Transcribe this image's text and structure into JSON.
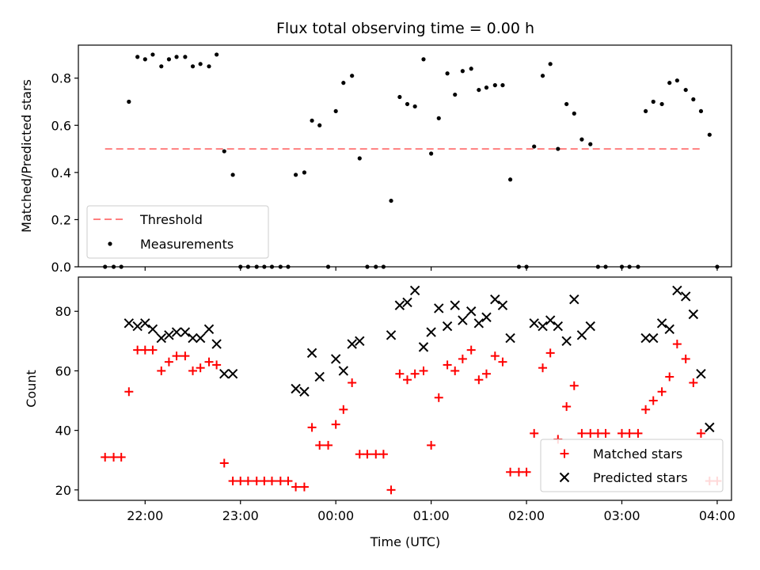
{
  "chart_data": [
    {
      "type": "scatter",
      "title": "Flux total observing time = 0.00 h",
      "xlabel": "",
      "ylabel": "Matched/Predicted stars",
      "ylim": [
        0,
        0.94
      ],
      "yticks": [
        0.0,
        0.2,
        0.4,
        0.6,
        0.8
      ],
      "ytick_labels": [
        "0.0",
        "0.2",
        "0.4",
        "0.6",
        "0.8"
      ],
      "xlim_hours_utc": [
        21.3,
        28.15
      ],
      "threshold": {
        "name": "Threshold",
        "value": 0.5,
        "x_start": 21.58,
        "x_end": 27.83,
        "color": "#ff7f7f"
      },
      "legend": {
        "position": "lower-left",
        "entries": [
          "Threshold",
          "Measurements"
        ]
      },
      "series": [
        {
          "name": "Measurements",
          "color": "#000000",
          "marker": "dot",
          "points": [
            [
              21.58,
              0.0
            ],
            [
              21.67,
              0.0
            ],
            [
              21.75,
              0.0
            ],
            [
              21.83,
              0.7
            ],
            [
              21.92,
              0.89
            ],
            [
              22.0,
              0.88
            ],
            [
              22.08,
              0.9
            ],
            [
              22.17,
              0.85
            ],
            [
              22.25,
              0.88
            ],
            [
              22.33,
              0.89
            ],
            [
              22.42,
              0.89
            ],
            [
              22.5,
              0.85
            ],
            [
              22.58,
              0.86
            ],
            [
              22.67,
              0.85
            ],
            [
              22.75,
              0.9
            ],
            [
              22.83,
              0.49
            ],
            [
              22.92,
              0.39
            ],
            [
              23.0,
              0.0
            ],
            [
              23.08,
              0.0
            ],
            [
              23.17,
              0.0
            ],
            [
              23.25,
              0.0
            ],
            [
              23.33,
              0.0
            ],
            [
              23.42,
              0.0
            ],
            [
              23.5,
              0.0
            ],
            [
              23.58,
              0.39
            ],
            [
              23.67,
              0.4
            ],
            [
              23.75,
              0.62
            ],
            [
              23.83,
              0.6
            ],
            [
              23.92,
              0.0
            ],
            [
              24.0,
              0.66
            ],
            [
              24.08,
              0.78
            ],
            [
              24.17,
              0.81
            ],
            [
              24.25,
              0.46
            ],
            [
              24.33,
              0.0
            ],
            [
              24.42,
              0.0
            ],
            [
              24.5,
              0.0
            ],
            [
              24.58,
              0.28
            ],
            [
              24.67,
              0.72
            ],
            [
              24.75,
              0.69
            ],
            [
              24.83,
              0.68
            ],
            [
              24.92,
              0.88
            ],
            [
              25.0,
              0.48
            ],
            [
              25.08,
              0.63
            ],
            [
              25.17,
              0.82
            ],
            [
              25.25,
              0.73
            ],
            [
              25.33,
              0.83
            ],
            [
              25.42,
              0.84
            ],
            [
              25.5,
              0.75
            ],
            [
              25.58,
              0.76
            ],
            [
              25.67,
              0.77
            ],
            [
              25.75,
              0.77
            ],
            [
              25.83,
              0.37
            ],
            [
              25.92,
              0.0
            ],
            [
              26.0,
              0.0
            ],
            [
              26.08,
              0.51
            ],
            [
              26.17,
              0.81
            ],
            [
              26.25,
              0.86
            ],
            [
              26.33,
              0.5
            ],
            [
              26.42,
              0.69
            ],
            [
              26.5,
              0.65
            ],
            [
              26.58,
              0.54
            ],
            [
              26.67,
              0.52
            ],
            [
              26.75,
              0.0
            ],
            [
              26.83,
              0.0
            ],
            [
              27.0,
              0.0
            ],
            [
              27.08,
              0.0
            ],
            [
              27.17,
              0.0
            ],
            [
              27.25,
              0.66
            ],
            [
              27.33,
              0.7
            ],
            [
              27.42,
              0.69
            ],
            [
              27.5,
              0.78
            ],
            [
              27.58,
              0.79
            ],
            [
              27.67,
              0.75
            ],
            [
              27.75,
              0.71
            ],
            [
              27.83,
              0.66
            ],
            [
              27.92,
              0.56
            ],
            [
              28.0,
              0.0
            ]
          ]
        }
      ]
    },
    {
      "type": "scatter",
      "title": "",
      "xlabel": "Time (UTC)",
      "ylabel": "Count",
      "ylim": [
        16.5,
        91.5
      ],
      "yticks": [
        20,
        40,
        60,
        80
      ],
      "ytick_labels": [
        "20",
        "40",
        "60",
        "80"
      ],
      "xlim_hours_utc": [
        21.3,
        28.15
      ],
      "xticks_hours_utc": [
        22,
        23,
        24,
        25,
        26,
        27,
        28
      ],
      "xtick_labels": [
        "22:00",
        "23:00",
        "00:00",
        "01:00",
        "02:00",
        "03:00",
        "04:00"
      ],
      "legend": {
        "position": "lower-right",
        "entries": [
          "Matched stars",
          "Predicted stars"
        ]
      },
      "series": [
        {
          "name": "Matched stars",
          "color": "#ff0000",
          "marker": "plus",
          "points": [
            [
              21.58,
              31
            ],
            [
              21.67,
              31
            ],
            [
              21.75,
              31
            ],
            [
              21.83,
              53
            ],
            [
              21.92,
              67
            ],
            [
              22.0,
              67
            ],
            [
              22.08,
              67
            ],
            [
              22.17,
              60
            ],
            [
              22.25,
              63
            ],
            [
              22.33,
              65
            ],
            [
              22.42,
              65
            ],
            [
              22.5,
              60
            ],
            [
              22.58,
              61
            ],
            [
              22.67,
              63
            ],
            [
              22.75,
              62
            ],
            [
              22.83,
              29
            ],
            [
              22.92,
              23
            ],
            [
              23.0,
              23
            ],
            [
              23.08,
              23
            ],
            [
              23.17,
              23
            ],
            [
              23.25,
              23
            ],
            [
              23.33,
              23
            ],
            [
              23.42,
              23
            ],
            [
              23.5,
              23
            ],
            [
              23.58,
              21
            ],
            [
              23.67,
              21
            ],
            [
              23.75,
              41
            ],
            [
              23.83,
              35
            ],
            [
              23.92,
              35
            ],
            [
              24.0,
              42
            ],
            [
              24.08,
              47
            ],
            [
              24.17,
              56
            ],
            [
              24.25,
              32
            ],
            [
              24.33,
              32
            ],
            [
              24.42,
              32
            ],
            [
              24.5,
              32
            ],
            [
              24.58,
              20
            ],
            [
              24.67,
              59
            ],
            [
              24.75,
              57
            ],
            [
              24.83,
              59
            ],
            [
              24.92,
              60
            ],
            [
              25.0,
              35
            ],
            [
              25.08,
              51
            ],
            [
              25.17,
              62
            ],
            [
              25.25,
              60
            ],
            [
              25.33,
              64
            ],
            [
              25.42,
              67
            ],
            [
              25.5,
              57
            ],
            [
              25.58,
              59
            ],
            [
              25.67,
              65
            ],
            [
              25.75,
              63
            ],
            [
              25.83,
              26
            ],
            [
              25.92,
              26
            ],
            [
              26.0,
              26
            ],
            [
              26.08,
              39
            ],
            [
              26.17,
              61
            ],
            [
              26.25,
              66
            ],
            [
              26.33,
              37
            ],
            [
              26.42,
              48
            ],
            [
              26.5,
              55
            ],
            [
              26.58,
              39
            ],
            [
              26.67,
              39
            ],
            [
              26.75,
              39
            ],
            [
              26.83,
              39
            ],
            [
              27.0,
              39
            ],
            [
              27.08,
              39
            ],
            [
              27.17,
              39
            ],
            [
              27.25,
              47
            ],
            [
              27.33,
              50
            ],
            [
              27.42,
              53
            ],
            [
              27.5,
              58
            ],
            [
              27.58,
              69
            ],
            [
              27.67,
              64
            ],
            [
              27.75,
              56
            ],
            [
              27.83,
              39
            ],
            [
              27.92,
              23
            ],
            [
              28.0,
              23
            ]
          ]
        },
        {
          "name": "Predicted stars",
          "color": "#000000",
          "marker": "x",
          "points": [
            [
              21.83,
              76
            ],
            [
              21.92,
              75
            ],
            [
              22.0,
              76
            ],
            [
              22.08,
              74
            ],
            [
              22.17,
              71
            ],
            [
              22.25,
              72
            ],
            [
              22.33,
              73
            ],
            [
              22.42,
              73
            ],
            [
              22.5,
              71
            ],
            [
              22.58,
              71
            ],
            [
              22.67,
              74
            ],
            [
              22.75,
              69
            ],
            [
              22.83,
              59
            ],
            [
              22.92,
              59
            ],
            [
              23.58,
              54
            ],
            [
              23.67,
              53
            ],
            [
              23.75,
              66
            ],
            [
              23.83,
              58
            ],
            [
              24.0,
              64
            ],
            [
              24.08,
              60
            ],
            [
              24.17,
              69
            ],
            [
              24.25,
              70
            ],
            [
              24.58,
              72
            ],
            [
              24.67,
              82
            ],
            [
              24.75,
              83
            ],
            [
              24.83,
              87
            ],
            [
              24.92,
              68
            ],
            [
              25.0,
              73
            ],
            [
              25.08,
              81
            ],
            [
              25.17,
              75
            ],
            [
              25.25,
              82
            ],
            [
              25.33,
              77
            ],
            [
              25.42,
              80
            ],
            [
              25.5,
              76
            ],
            [
              25.58,
              78
            ],
            [
              25.67,
              84
            ],
            [
              25.75,
              82
            ],
            [
              25.83,
              71
            ],
            [
              26.08,
              76
            ],
            [
              26.17,
              75
            ],
            [
              26.25,
              77
            ],
            [
              26.33,
              75
            ],
            [
              26.42,
              70
            ],
            [
              26.5,
              84
            ],
            [
              26.58,
              72
            ],
            [
              26.67,
              75
            ],
            [
              27.25,
              71
            ],
            [
              27.33,
              71
            ],
            [
              27.42,
              76
            ],
            [
              27.5,
              74
            ],
            [
              27.58,
              87
            ],
            [
              27.67,
              85
            ],
            [
              27.75,
              79
            ],
            [
              27.83,
              59
            ],
            [
              27.92,
              41
            ]
          ]
        }
      ]
    }
  ]
}
